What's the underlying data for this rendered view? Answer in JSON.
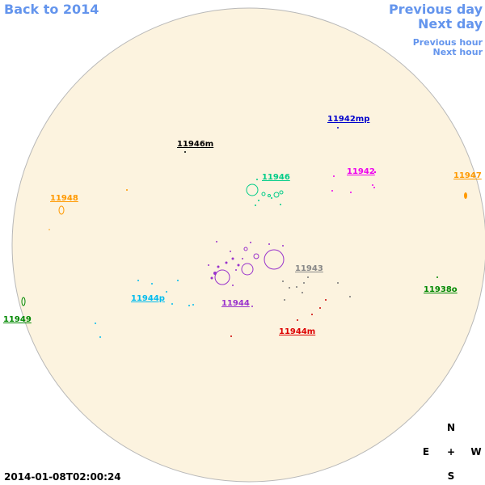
{
  "nav": {
    "back": "Back to 2014",
    "previous_day": "Previous day",
    "next_day": "Next day",
    "previous_hour": "Previous hour",
    "next_hour": "Next hour"
  },
  "regions": [
    "11942mp",
    "11946m",
    "11946",
    "11942",
    "11947",
    "11948",
    "11943",
    "11938o",
    "11944p",
    "11944",
    "11949",
    "11944m"
  ],
  "compass": {
    "north": "N",
    "east": "E",
    "center": "+",
    "west": "W",
    "south": "S"
  },
  "timestamp": "2014-01-08T02:00:24"
}
